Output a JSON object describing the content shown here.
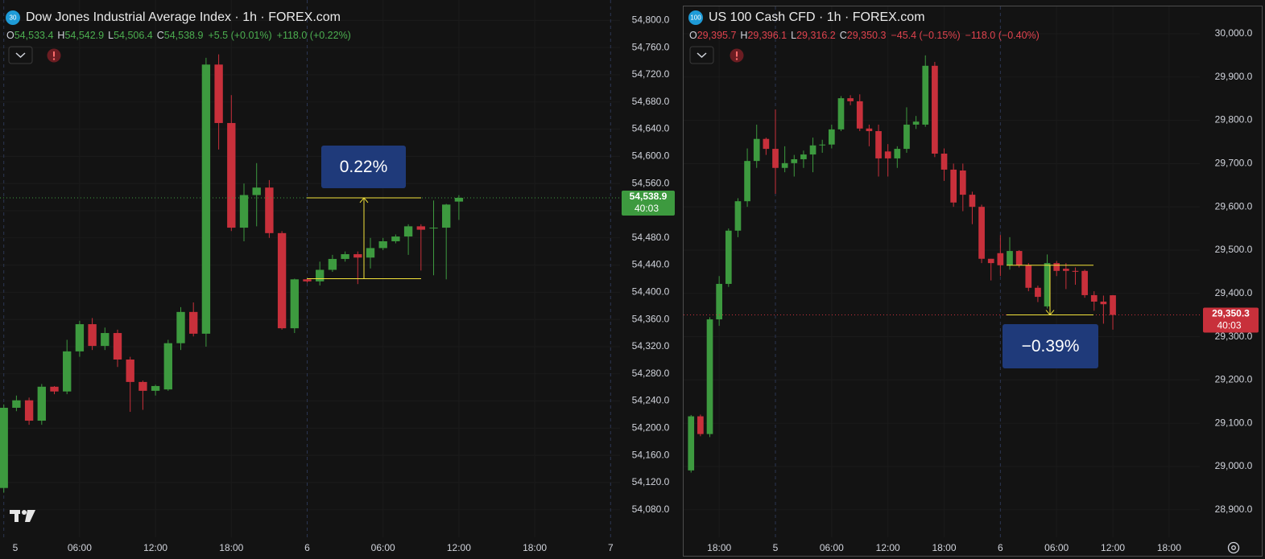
{
  "chart_data": [
    {
      "type": "candlestick",
      "title": "Dow Jones Industrial Average Index · 1h · FOREX.com",
      "symbol_badge": "30",
      "ohlc": [
        {
          "label": "O",
          "value": "54,533.4"
        },
        {
          "label": "H",
          "value": "54,542.9"
        },
        {
          "label": "L",
          "value": "54,506.4"
        },
        {
          "label": "C",
          "value": "54,538.9"
        }
      ],
      "change": "+5.5 (+0.01%)",
      "change_total": "+118.0 (+0.22%)",
      "header_color": "#4caf50",
      "up_color": "#3d9a3f",
      "down_color": "#c8303b",
      "x": [
        0,
        1,
        2,
        3,
        4,
        5,
        6,
        7,
        8,
        9,
        10,
        11,
        12,
        13,
        14,
        15,
        16,
        17,
        18,
        19,
        20,
        21,
        22,
        23,
        24,
        25,
        26,
        27,
        28,
        29,
        30,
        31,
        32,
        33,
        34,
        35,
        36
      ],
      "open": [
        54112,
        54230,
        54241,
        54211,
        54261,
        54254,
        54313,
        54353,
        54321,
        54340,
        54301,
        54268,
        54255,
        54257,
        54325,
        54371,
        54339,
        54735,
        54649,
        54495,
        54543,
        54554,
        54487,
        54347,
        54419,
        54416,
        54433,
        54449,
        54456,
        54451,
        54465,
        54475,
        54482,
        54497,
        54494,
        54495,
        54533.4
      ],
      "high": [
        54235,
        54248,
        54245,
        54265,
        54262,
        54330,
        54358,
        54362,
        54348,
        54345,
        54305,
        54270,
        54264,
        54330,
        54378,
        54385,
        54745,
        54750,
        54690,
        54560,
        54590,
        54565,
        54490,
        54420,
        54420,
        54445,
        54455,
        54460,
        54460,
        54480,
        54480,
        54485,
        54500,
        54500,
        54535,
        54530,
        54542.9
      ],
      "low": [
        54105,
        54225,
        54205,
        54205,
        54250,
        54250,
        54305,
        54315,
        54315,
        54290,
        54224,
        54227,
        54248,
        54255,
        54315,
        54335,
        54320,
        54610,
        54490,
        54475,
        54497,
        54480,
        54345,
        54340,
        54414,
        54410,
        54430,
        54445,
        54412,
        54435,
        54462,
        54472,
        54455,
        54432,
        54425,
        54419,
        54506.4
      ],
      "close": [
        54230,
        54241,
        54211,
        54261,
        54254,
        54313,
        54353,
        54321,
        54340,
        54301,
        54268,
        54255,
        54262,
        54325,
        54371,
        54339,
        54735,
        54649,
        54495,
        54543,
        54554,
        54487,
        54347,
        54419,
        54416,
        54433,
        54449,
        54456,
        54451,
        54465,
        54475,
        54482,
        54497,
        54492,
        54495,
        54529,
        54538.9
      ],
      "ylim": [
        54043,
        54830
      ],
      "yticks": [
        {
          "value": 54080,
          "label": "54,080.0"
        },
        {
          "value": 54120,
          "label": "54,120.0"
        },
        {
          "value": 54160,
          "label": "54,160.0"
        },
        {
          "value": 54200,
          "label": "54,200.0"
        },
        {
          "value": 54240,
          "label": "54,240.0"
        },
        {
          "value": 54280,
          "label": "54,280.0"
        },
        {
          "value": 54320,
          "label": "54,320.0"
        },
        {
          "value": 54360,
          "label": "54,360.0"
        },
        {
          "value": 54400,
          "label": "54,400.0"
        },
        {
          "value": 54440,
          "label": "54,440.0"
        },
        {
          "value": 54480,
          "label": "54,480.0"
        },
        {
          "value": 54520,
          "label": "54,520.0"
        },
        {
          "value": 54560,
          "label": "54,560.0"
        },
        {
          "value": 54600,
          "label": "54,600.0"
        },
        {
          "value": 54640,
          "label": "54,640.0"
        },
        {
          "value": 54680,
          "label": "54,680.0"
        },
        {
          "value": 54720,
          "label": "54,720.0"
        },
        {
          "value": 54760,
          "label": "54,760.0"
        },
        {
          "value": 54800,
          "label": "54,800.0"
        }
      ],
      "xticks": [
        {
          "value": 0,
          "label": "5"
        },
        {
          "value": 6,
          "label": "06:00"
        },
        {
          "value": 12,
          "label": "12:00"
        },
        {
          "value": 18,
          "label": "18:00"
        },
        {
          "value": 24,
          "label": "6"
        },
        {
          "value": 30,
          "label": "06:00"
        },
        {
          "value": 36,
          "label": "12:00"
        },
        {
          "value": 42,
          "label": "18:00"
        },
        {
          "value": 48,
          "label": "7"
        }
      ],
      "last_price": {
        "value": 54538.9,
        "label": "54,538.9",
        "countdown": "40:03",
        "color": "#3d9a3f"
      },
      "measure": {
        "from": 54420,
        "to": 54538.9,
        "label": "0.22%"
      }
    },
    {
      "type": "candlestick",
      "title": "US 100 Cash CFD · 1h · FOREX.com",
      "symbol_badge": "100",
      "ohlc": [
        {
          "label": "O",
          "value": "29,395.7"
        },
        {
          "label": "H",
          "value": "29,396.1"
        },
        {
          "label": "L",
          "value": "29,316.2"
        },
        {
          "label": "C",
          "value": "29,350.3"
        }
      ],
      "change": "−45.4 (−0.15%)",
      "change_total": "−118.0 (−0.40%)",
      "header_color": "#e0434e",
      "up_color": "#3d9a3f",
      "down_color": "#c8303b",
      "x": [
        -9,
        -8,
        -7,
        -6,
        -5,
        -4,
        -3,
        -2,
        -1,
        0,
        1,
        2,
        3,
        4,
        5,
        6,
        7,
        8,
        9,
        10,
        11,
        12,
        13,
        14,
        15,
        16,
        17,
        18,
        19,
        20,
        21,
        22,
        23,
        24,
        25,
        26,
        27,
        28,
        29,
        30,
        31,
        32,
        33,
        34,
        35,
        36
      ],
      "open": [
        28991,
        29116,
        29075,
        29340,
        29422,
        29545,
        29613,
        29706,
        29757,
        29734,
        29690,
        29701,
        29710,
        29721,
        29742,
        29744,
        29779,
        29851,
        29844,
        29781,
        29775,
        29728,
        29712,
        29734,
        29790,
        29790,
        29926,
        29723,
        29686,
        29684,
        29628,
        29600,
        29480,
        29493,
        29465,
        29498,
        29465,
        29413,
        29370,
        29470,
        29457,
        29452,
        29452,
        29396,
        29381,
        29395.7
      ],
      "high": [
        29119,
        29120,
        29345,
        29440,
        29550,
        29620,
        29735,
        29790,
        29760,
        29825,
        29740,
        29720,
        29730,
        29760,
        29755,
        29790,
        29856,
        29858,
        29860,
        29790,
        29790,
        29745,
        29740,
        29830,
        29810,
        29950,
        29935,
        29735,
        29700,
        29700,
        29635,
        29605,
        29480,
        29535,
        29530,
        29500,
        29470,
        29418,
        29490,
        29475,
        29470,
        29460,
        29455,
        29405,
        29395,
        29396.1
      ],
      "low": [
        28986,
        29070,
        29068,
        29325,
        29415,
        29530,
        29600,
        29690,
        29720,
        29630,
        29680,
        29670,
        29690,
        29680,
        29725,
        29735,
        29775,
        29835,
        29775,
        29740,
        29670,
        29670,
        29690,
        29725,
        29780,
        29785,
        29715,
        29660,
        29600,
        29590,
        29560,
        29470,
        29430,
        29440,
        29455,
        29460,
        29405,
        29380,
        29365,
        29440,
        29410,
        29420,
        29390,
        29360,
        29330,
        29316.2
      ],
      "close": [
        29116,
        29075,
        29340,
        29422,
        29545,
        29613,
        29706,
        29757,
        29734,
        29690,
        29701,
        29710,
        29721,
        29742,
        29744,
        29779,
        29851,
        29844,
        29781,
        29775,
        29712,
        29712,
        29734,
        29790,
        29797,
        29926,
        29723,
        29686,
        29610,
        29628,
        29600,
        29480,
        29470,
        29465,
        29498,
        29465,
        29413,
        29392,
        29470,
        29452,
        29452,
        29450,
        29396,
        29381,
        29375,
        29350.3
      ],
      "ylim": [
        28842,
        30078
      ],
      "yticks": [
        {
          "value": 28900,
          "label": "28,900.0"
        },
        {
          "value": 29000,
          "label": "29,000.0"
        },
        {
          "value": 29100,
          "label": "29,100.0"
        },
        {
          "value": 29200,
          "label": "29,200.0"
        },
        {
          "value": 29300,
          "label": "29,300.0"
        },
        {
          "value": 29400,
          "label": "29,400.0"
        },
        {
          "value": 29500,
          "label": "29,500.0"
        },
        {
          "value": 29600,
          "label": "29,600.0"
        },
        {
          "value": 29700,
          "label": "29,700.0"
        },
        {
          "value": 29800,
          "label": "29,800.0"
        },
        {
          "value": 29900,
          "label": "29,900.0"
        },
        {
          "value": 30000,
          "label": "30,000.0"
        }
      ],
      "xticks": [
        {
          "value": -6,
          "label": "18:00"
        },
        {
          "value": 0,
          "label": "5"
        },
        {
          "value": 6,
          "label": "06:00"
        },
        {
          "value": 12,
          "label": "12:00"
        },
        {
          "value": 18,
          "label": "18:00"
        },
        {
          "value": 24,
          "label": "6"
        },
        {
          "value": 30,
          "label": "06:00"
        },
        {
          "value": 36,
          "label": "12:00"
        },
        {
          "value": 42,
          "label": "18:00"
        }
      ],
      "last_price": {
        "value": 29350.3,
        "label": "29,350.3",
        "countdown": "40:03",
        "color": "#c8303b"
      },
      "measure": {
        "from": 29465,
        "to": 29350.3,
        "label": "−0.39%"
      }
    }
  ]
}
